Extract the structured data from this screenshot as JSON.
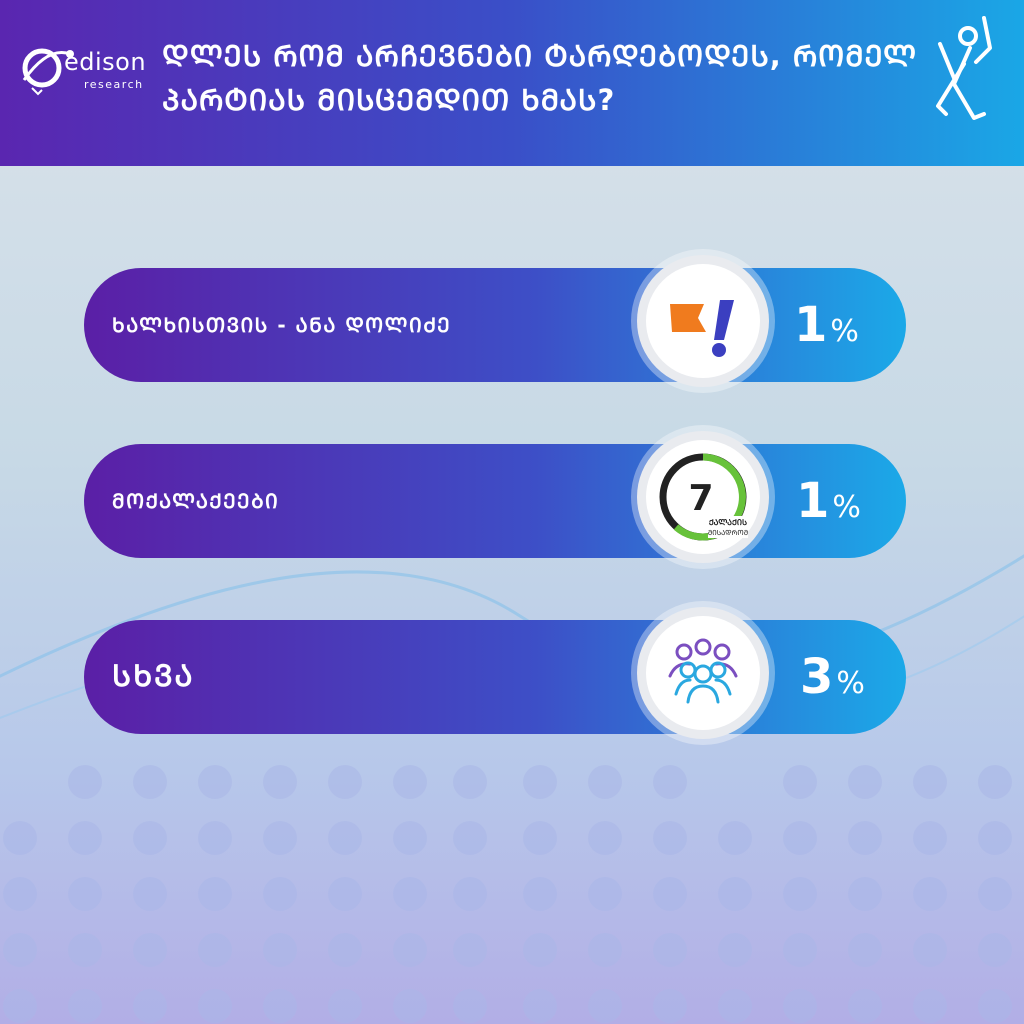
{
  "brand": {
    "name": "edison",
    "sub": "research"
  },
  "header": {
    "title": "ᲓᲚᲔᲡ ᲠᲝᲛ ᲐᲠᲩᲔᲕᲜᲔᲑᲘ ᲢᲐᲠᲓᲔᲑᲝᲓᲔᲡ, ᲠᲝᲛᲔᲚ ᲞᲐᲠᲢᲘᲐᲡ ᲛᲘᲡᲪᲔᲛᲓᲘᲗ ᲮᲛᲐᲡ?"
  },
  "icons": {
    "header": "voter-ballot-icon",
    "party1": "flag-exclamation-icon",
    "party2": "number-7-ring-icon",
    "other": "people-group-icon"
  },
  "party2_logo": {
    "number": "7",
    "text_line1": "ᲥᲐᲚᲐᲥᲘᲡ",
    "text_line2": "ᲛᲘᲡᲐᲓᲠᲝᲛ"
  },
  "colors": {
    "bar_start": "#5b1fa6",
    "bar_end": "#1ba9e8",
    "flag": "#f07b1e",
    "exclaim": "#3b3fc0",
    "ring_green": "#67c23a"
  },
  "chart_data": {
    "type": "bar",
    "title": "ᲓᲚᲔᲡ ᲠᲝᲛ ᲐᲠᲩᲔᲕᲜᲔᲑᲘ ᲢᲐᲠᲓᲔᲑᲝᲓᲔᲡ, ᲠᲝᲛᲔᲚ ᲞᲐᲠᲢᲘᲐᲡ ᲛᲘᲡᲪᲔᲛᲓᲘᲗ ᲮᲛᲐᲡ?",
    "unit": "%",
    "categories": [
      "ᲮᲐᲚᲮᲘᲡᲗᲕᲘᲡ - ᲐᲜᲐ ᲓᲝᲚᲘᲫᲔ",
      "ᲛᲝᲥᲐᲚᲐᲥᲔᲔᲑᲘ",
      "ᲡᲮᲕᲐ"
    ],
    "values": [
      1,
      1,
      3
    ],
    "value_labels": [
      "1",
      "1",
      "3"
    ]
  }
}
